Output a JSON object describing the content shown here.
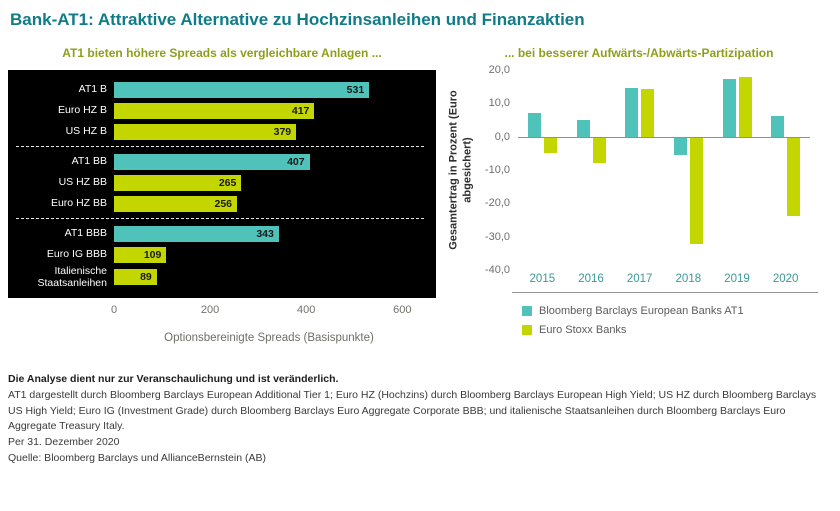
{
  "title": "Bank-AT1: Attraktive Alternative zu Hochzinsanleihen und Finanzaktien",
  "colors": {
    "title": "#0f7c87",
    "subtitle": "#8f9e19",
    "teal": "#4fc2b9",
    "lime": "#c3d600",
    "panel_background": "#000000",
    "axis_text": "#6f6f6f",
    "year_labels": "#39999a"
  },
  "chart_data": [
    {
      "type": "bar",
      "orientation": "horizontal",
      "title": "AT1 bieten höhere Spreads als vergleichbare Anlagen ...",
      "xlabel": "Optionsbereinigte Spreads (Basispunkte)",
      "xlim": [
        0,
        600
      ],
      "xticks": [
        0,
        200,
        400,
        600
      ],
      "categories": [
        "AT1 B",
        "Euro HZ B",
        "US HZ B",
        "AT1 BB",
        "US HZ BB",
        "Euro HZ BB",
        "AT1 BBB",
        "Euro IG BBB",
        "Italienische Staatsanleihen"
      ],
      "values": [
        531,
        417,
        379,
        407,
        265,
        256,
        343,
        109,
        89
      ],
      "bar_colors": [
        "teal",
        "lime",
        "lime",
        "teal",
        "lime",
        "lime",
        "teal",
        "lime",
        "lime"
      ],
      "group_separators_after_index": [
        2,
        5
      ],
      "value_labels_shown": true,
      "background": "black"
    },
    {
      "type": "bar",
      "orientation": "vertical",
      "title": "... bei besserer Aufwärts-/Abwärts-Partizipation",
      "ylabel": "Gesamtertrag in Prozent (Euro abgesichert)",
      "ylim": [
        -40,
        20
      ],
      "ytick_labels": [
        "20,0",
        "10,0",
        "0,0",
        "-10,0",
        "-20,0",
        "-30,0",
        "-40,0"
      ],
      "categories": [
        "2015",
        "2016",
        "2017",
        "2018",
        "2019",
        "2020"
      ],
      "series": [
        {
          "name": "Bloomberg Barclays European Banks AT1",
          "color": "#4fc2b9",
          "values": [
            7.1,
            4.9,
            14.6,
            -5.1,
            17.4,
            6.1
          ]
        },
        {
          "name": "Euro Stoxx Banks",
          "color": "#c3d600",
          "values": [
            -4.6,
            -7.6,
            14.3,
            -31.8,
            17.9,
            -23.6
          ]
        }
      ],
      "legend_position": "bottom-left",
      "grid": "zero-line-only"
    }
  ],
  "footer": {
    "disclaimer": "Die Analyse dient nur zur Veranschaulichung und ist veränderlich.",
    "definitions": "AT1 dargestellt durch Bloomberg Barclays European Additional Tier 1; Euro HZ (Hochzins) durch Bloomberg Barclays European High Yield; US HZ durch Bloomberg Barclays US High Yield; Euro IG (Investment Grade) durch Bloomberg Barclays Euro Aggregate Corporate BBB; und italienische Staatsanleihen durch Bloomberg Barclays Euro Aggregate Treasury Italy.",
    "as_of": "Per 31. Dezember 2020",
    "source": "Quelle: Bloomberg Barclays und AllianceBernstein (AB)"
  }
}
